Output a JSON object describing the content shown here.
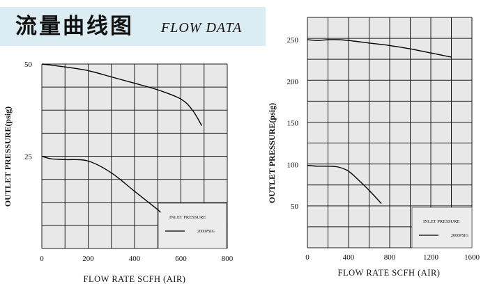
{
  "header": {
    "title_cn": "流量曲线图",
    "title_en": "FLOW DATA",
    "background": "#dcecf3"
  },
  "chart_data": [
    {
      "type": "line",
      "xlabel": "FLOW RATE SCFH (AIR)",
      "ylabel": "OUTLET PRESSURE(psig)",
      "x_ticks": [
        0,
        200,
        400,
        600,
        800
      ],
      "x_tick_labels": [
        "0",
        "200",
        "400",
        "600",
        "800"
      ],
      "y_ticks": [
        25,
        50
      ],
      "y_tick_labels": [
        "25",
        "50"
      ],
      "xlim": [
        0,
        800
      ],
      "ylim": [
        0,
        50
      ],
      "grid": true,
      "plot_background": "#e8e8e8",
      "legend": {
        "title": "INLET PRESSURE",
        "entry": "2000PSIG",
        "position": "bottom-right"
      },
      "series": [
        {
          "x": [
            0,
            100,
            200,
            300,
            400,
            500,
            600,
            650,
            690
          ],
          "y": [
            50,
            49.2,
            48.2,
            46.5,
            44.8,
            43,
            40.5,
            37.5,
            33.3
          ]
        },
        {
          "x": [
            0,
            40,
            100,
            200,
            300,
            400,
            500,
            510
          ],
          "y": [
            25,
            24.3,
            24.1,
            23.7,
            20.5,
            15.5,
            10.5,
            9.8
          ]
        }
      ]
    },
    {
      "type": "line",
      "xlabel": "FLOW RATE SCFH (AIR)",
      "ylabel": "OUTLET PRESSURE(psig)",
      "x_ticks": [
        0,
        400,
        800,
        1200,
        1600
      ],
      "x_tick_labels": [
        "0",
        "400",
        "800",
        "1200",
        "1600"
      ],
      "y_ticks": [
        50,
        100,
        150,
        200,
        250
      ],
      "y_tick_labels": [
        "50",
        "100",
        "150",
        "200",
        "250"
      ],
      "xlim": [
        0,
        1600
      ],
      "ylim": [
        0,
        250
      ],
      "grid": true,
      "plot_background": "#e8e8e8",
      "legend": {
        "title": "INLET PRESSURE",
        "entry": "2000PSIG",
        "position": "bottom-right"
      },
      "series": [
        {
          "x": [
            0,
            100,
            200,
            300,
            400,
            600,
            800,
            1000,
            1200,
            1400
          ],
          "y": [
            250,
            249,
            250,
            250,
            249,
            246,
            243,
            239,
            234,
            229
          ]
        },
        {
          "x": [
            0,
            100,
            200,
            300,
            400,
            500,
            600,
            720
          ],
          "y": [
            99,
            98,
            98,
            97,
            92,
            81,
            69,
            53
          ]
        }
      ]
    }
  ]
}
